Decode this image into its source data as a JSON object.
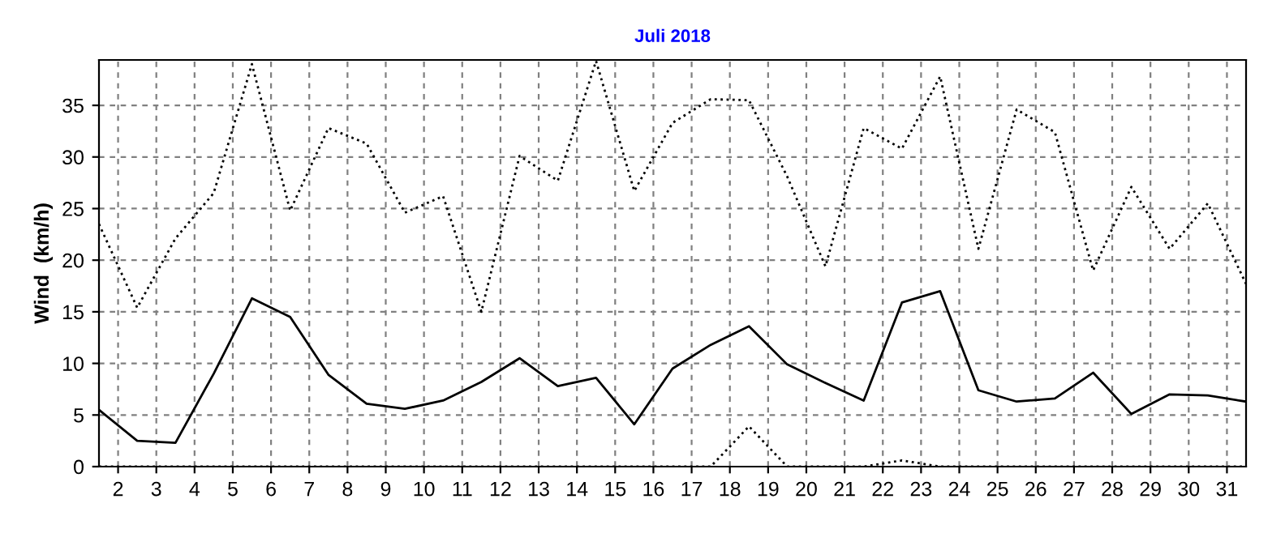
{
  "chart_data": {
    "type": "line",
    "title": "Juli 2018",
    "ylabel": "Wind  (km/h)",
    "x": [
      1.5,
      2.5,
      3.5,
      4.5,
      5.5,
      6.5,
      7.5,
      8.5,
      9.5,
      10.5,
      11.5,
      12.5,
      13.5,
      14.5,
      15.5,
      16.5,
      17.5,
      18.5,
      19.5,
      20.5,
      21.5,
      22.5,
      23.5,
      24.5,
      25.5,
      26.5,
      27.5,
      28.5,
      29.5,
      30.5,
      31.5
    ],
    "series": [
      {
        "color": "#000000",
        "line_style": "dotted",
        "values": [
          23.5,
          15.4,
          22.1,
          26.5,
          39.0,
          24.8,
          32.8,
          31.3,
          24.6,
          26.2,
          15.0,
          30.1,
          27.7,
          39.3,
          26.7,
          33.3,
          35.6,
          35.5,
          28.1,
          19.4,
          32.8,
          30.8,
          37.8,
          21.1,
          34.6,
          32.4,
          19.0,
          27.1,
          21.1,
          25.5,
          17.7
        ]
      },
      {
        "color": "#000000",
        "line_style": "solid",
        "values": [
          5.5,
          2.5,
          2.3,
          9.0,
          16.3,
          14.5,
          8.9,
          6.1,
          5.6,
          6.4,
          8.2,
          10.5,
          7.8,
          8.6,
          4.1,
          9.5,
          11.8,
          13.6,
          9.9,
          8.1,
          6.4,
          15.9,
          17.0,
          7.4,
          6.3,
          6.6,
          9.1,
          5.1,
          7.0,
          6.9,
          6.3
        ]
      },
      {
        "color": "#000000",
        "line_style": "dotted",
        "values": [
          0,
          0,
          0,
          0,
          0,
          0,
          0,
          0,
          0,
          0,
          0,
          0,
          0,
          0,
          0,
          0,
          0,
          3.9,
          0,
          0,
          0,
          0.6,
          0,
          0,
          0,
          0,
          0,
          0,
          0,
          0,
          0
        ]
      }
    ],
    "xlim": [
      1.5,
      31.5
    ],
    "xticks": [
      2,
      3,
      4,
      5,
      6,
      7,
      8,
      9,
      10,
      11,
      12,
      13,
      14,
      15,
      16,
      17,
      18,
      19,
      20,
      21,
      22,
      23,
      24,
      25,
      26,
      27,
      28,
      29,
      30,
      31
    ],
    "ylim": [
      0,
      39.4
    ],
    "yticks": [
      0,
      5,
      10,
      15,
      20,
      25,
      30,
      35
    ],
    "grid": true,
    "legend": false,
    "marker": "none"
  }
}
